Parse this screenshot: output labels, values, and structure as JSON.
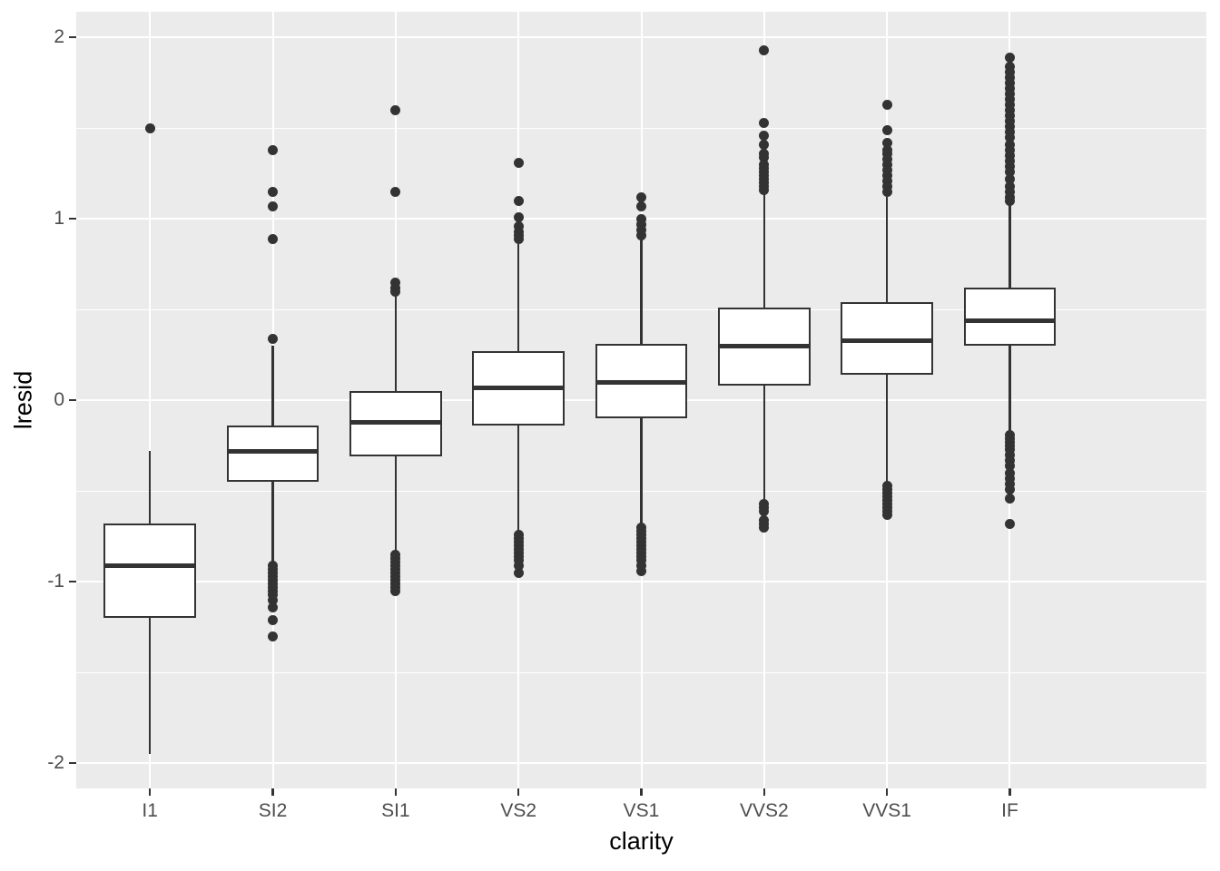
{
  "chart_data": {
    "type": "boxplot",
    "title": "",
    "xlabel": "clarity",
    "ylabel": "lresid",
    "categories": [
      "I1",
      "SI2",
      "SI1",
      "VS2",
      "VS1",
      "VVS2",
      "VVS1",
      "IF"
    ],
    "ylim": [
      -2.14,
      2.14
    ],
    "y_major_ticks": [
      2,
      1,
      0,
      -1,
      -2
    ],
    "y_tick_labels": [
      "2",
      "1",
      "0",
      "-1",
      "-2"
    ],
    "y_minor_gridlines": [
      1.5,
      0.5,
      -0.5,
      -1.5
    ],
    "grid": true,
    "legend": null,
    "style": {
      "panel_bg": "#EBEBEB",
      "grid_color": "#FFFFFF",
      "box_stroke": "#333333",
      "box_fill": "#FFFFFF",
      "tick_text_color": "#4D4D4D",
      "axis_title_color": "#000000"
    },
    "series": [
      {
        "category": "I1",
        "whisker_low": -1.95,
        "q1": -1.2,
        "median": -0.91,
        "q3": -0.68,
        "whisker_high": -0.28,
        "outliers": [
          1.5
        ]
      },
      {
        "category": "SI2",
        "whisker_low": -0.9,
        "q1": -0.45,
        "median": -0.28,
        "q3": -0.14,
        "whisker_high": 0.3,
        "outliers": [
          1.38,
          1.15,
          1.07,
          0.89,
          0.34,
          -0.91,
          -0.93,
          -0.95,
          -0.97,
          -0.99,
          -1.01,
          -1.03,
          -1.05,
          -1.07,
          -1.1,
          -1.14,
          -1.21,
          -1.3
        ]
      },
      {
        "category": "SI1",
        "whisker_low": -0.84,
        "q1": -0.31,
        "median": -0.12,
        "q3": 0.05,
        "whisker_high": 0.58,
        "outliers": [
          1.6,
          1.15,
          0.65,
          0.62,
          0.6,
          -0.85,
          -0.87,
          -0.89,
          -0.91,
          -0.93,
          -0.95,
          -0.97,
          -0.99,
          -1.01,
          -1.03,
          -1.05
        ]
      },
      {
        "category": "VS2",
        "whisker_low": -0.74,
        "q1": -0.14,
        "median": 0.07,
        "q3": 0.27,
        "whisker_high": 0.86,
        "outliers": [
          1.31,
          1.1,
          1.01,
          0.96,
          0.93,
          0.91,
          0.89,
          -0.74,
          -0.76,
          -0.78,
          -0.8,
          -0.82,
          -0.84,
          -0.86,
          -0.88,
          -0.91,
          -0.95
        ]
      },
      {
        "category": "VS1",
        "whisker_low": -0.69,
        "q1": -0.1,
        "median": 0.1,
        "q3": 0.31,
        "whisker_high": 0.9,
        "outliers": [
          1.12,
          1.07,
          1.0,
          0.97,
          0.94,
          0.91,
          -0.7,
          -0.72,
          -0.74,
          -0.76,
          -0.78,
          -0.8,
          -0.82,
          -0.84,
          -0.86,
          -0.88,
          -0.91,
          -0.94
        ]
      },
      {
        "category": "VVS2",
        "whisker_low": -0.56,
        "q1": 0.08,
        "median": 0.3,
        "q3": 0.51,
        "whisker_high": 1.14,
        "outliers": [
          1.93,
          1.53,
          1.46,
          1.41,
          1.36,
          1.34,
          1.3,
          1.28,
          1.26,
          1.24,
          1.22,
          1.2,
          1.18,
          1.16,
          -0.57,
          -0.59,
          -0.61,
          -0.66,
          -0.68,
          -0.7
        ]
      },
      {
        "category": "VVS1",
        "whisker_low": -0.46,
        "q1": 0.14,
        "median": 0.33,
        "q3": 0.54,
        "whisker_high": 1.12,
        "outliers": [
          1.63,
          1.49,
          1.42,
          1.38,
          1.36,
          1.33,
          1.3,
          1.27,
          1.24,
          1.21,
          1.18,
          1.15,
          -0.47,
          -0.49,
          -0.51,
          -0.53,
          -0.55,
          -0.57,
          -0.59,
          -0.61,
          -0.63
        ]
      },
      {
        "category": "IF",
        "whisker_low": -0.18,
        "q1": 0.3,
        "median": 0.44,
        "q3": 0.62,
        "whisker_high": 1.08,
        "outliers": [
          1.89,
          1.84,
          1.81,
          1.78,
          1.75,
          1.72,
          1.69,
          1.66,
          1.63,
          1.6,
          1.57,
          1.54,
          1.51,
          1.48,
          1.45,
          1.41,
          1.38,
          1.35,
          1.32,
          1.29,
          1.26,
          1.22,
          1.18,
          1.15,
          1.12,
          1.1,
          -0.19,
          -0.21,
          -0.23,
          -0.25,
          -0.27,
          -0.3,
          -0.33,
          -0.36,
          -0.4,
          -0.43,
          -0.46,
          -0.49,
          -0.54,
          -0.68
        ]
      }
    ]
  }
}
